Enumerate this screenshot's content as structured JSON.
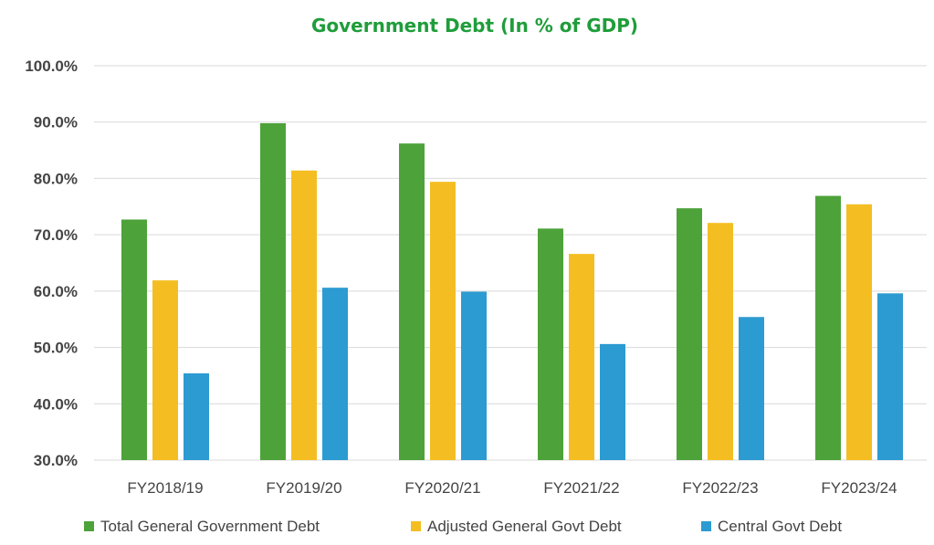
{
  "chart_data": {
    "type": "bar",
    "title": "Government Debt (In % of GDP)",
    "xlabel": "",
    "ylabel": "",
    "ylim": [
      30,
      100
    ],
    "yticks": [
      "30.0%",
      "40.0%",
      "50.0%",
      "60.0%",
      "70.0%",
      "80.0%",
      "90.0%",
      "100.0%"
    ],
    "categories": [
      "FY2018/19",
      "FY2019/20",
      "FY2020/21",
      "FY2021/22",
      "FY2022/23",
      "FY2023/24"
    ],
    "series": [
      {
        "name": "Total General Government Debt",
        "values": [
          72.7,
          89.8,
          86.2,
          71.1,
          74.7,
          76.9
        ]
      },
      {
        "name": "Adjusted General Govt Debt",
        "values": [
          61.9,
          81.4,
          79.4,
          66.6,
          72.1,
          75.4
        ]
      },
      {
        "name": "Central Govt Debt",
        "values": [
          45.4,
          60.6,
          59.9,
          50.6,
          55.4,
          59.6
        ]
      }
    ],
    "grid": true,
    "legend": "bottom",
    "colors": {
      "title": "#1f9d3a",
      "series": [
        "#4ea23a",
        "#f4be22",
        "#2c9bd1"
      ]
    }
  }
}
